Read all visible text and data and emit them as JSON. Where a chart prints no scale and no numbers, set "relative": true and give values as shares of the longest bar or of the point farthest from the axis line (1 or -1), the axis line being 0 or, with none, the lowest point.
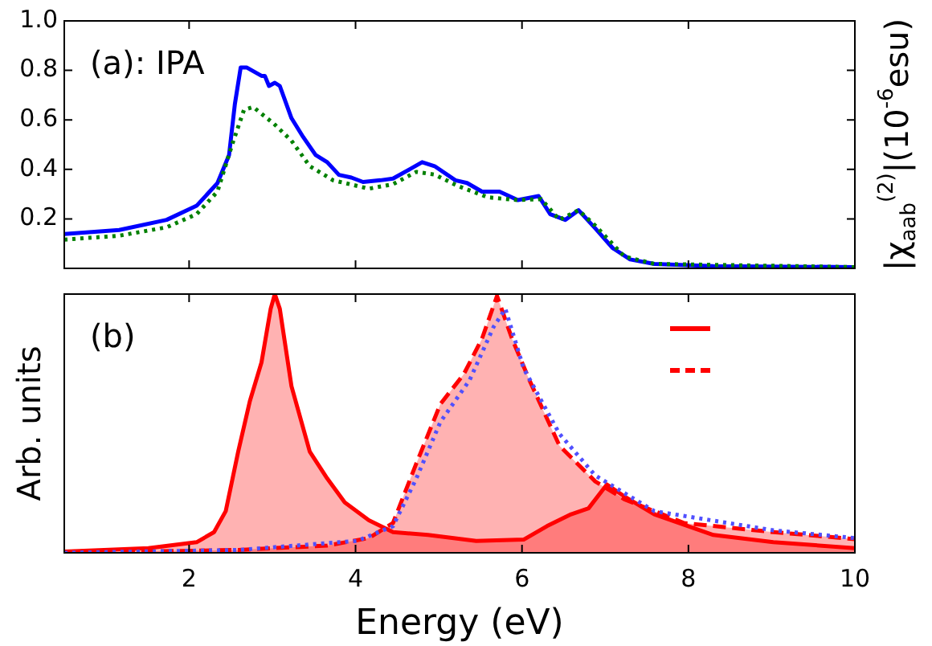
{
  "chart_data": [
    {
      "type": "line",
      "y2label": "|χ$_{aab}$$^{(2)}$|(10$^{-6}$esu)",
      "annotations": [
        "(a): IPA"
      ],
      "xlim": [
        0.5,
        10
      ],
      "xticks": [
        2,
        4,
        6,
        8,
        10
      ],
      "ylim": [
        0,
        1
      ],
      "yticks": [
        0.2,
        0.4,
        0.6,
        0.8,
        {
          "value": 1,
          "label": "1.0"
        }
      ],
      "tick_labels": "y",
      "legend": false,
      "grid": false,
      "series": [
        {
          "color": "#0000ff",
          "line_style": "solid",
          "x": [
            0.5,
            1.16,
            1.73,
            2.09,
            2.34,
            2.48,
            2.55,
            2.62,
            2.69,
            2.87,
            2.91,
            2.96,
            3.03,
            3.09,
            3.23,
            3.37,
            3.52,
            3.66,
            3.8,
            3.95,
            4.09,
            4.3,
            4.45,
            4.66,
            4.8,
            4.95,
            5.2,
            5.34,
            5.52,
            5.73,
            5.95,
            6.2,
            6.34,
            6.52,
            6.68,
            6.88,
            7.09,
            7.3,
            7.59,
            8.3,
            10
          ],
          "values": [
            0.139,
            0.155,
            0.196,
            0.253,
            0.344,
            0.458,
            0.664,
            0.812,
            0.812,
            0.778,
            0.778,
            0.737,
            0.75,
            0.737,
            0.607,
            0.531,
            0.458,
            0.429,
            0.378,
            0.367,
            0.349,
            0.356,
            0.363,
            0.402,
            0.429,
            0.413,
            0.356,
            0.345,
            0.31,
            0.31,
            0.276,
            0.292,
            0.219,
            0.196,
            0.235,
            0.162,
            0.082,
            0.036,
            0.018,
            0.009,
            0.005
          ]
        },
        {
          "color": "#008000",
          "line_style": "dotted",
          "x": [
            0.5,
            1.16,
            1.73,
            2.09,
            2.34,
            2.52,
            2.66,
            2.77,
            3.02,
            3.23,
            3.45,
            3.73,
            4.16,
            4.45,
            4.73,
            4.95,
            5.23,
            5.59,
            5.95,
            6.23,
            6.45,
            6.68,
            6.88,
            7.23,
            7.59,
            10
          ],
          "values": [
            0.116,
            0.132,
            0.166,
            0.219,
            0.31,
            0.503,
            0.641,
            0.652,
            0.584,
            0.516,
            0.413,
            0.356,
            0.322,
            0.34,
            0.39,
            0.379,
            0.333,
            0.287,
            0.276,
            0.28,
            0.196,
            0.235,
            0.173,
            0.048,
            0.018,
            0.005
          ]
        }
      ]
    },
    {
      "type": "area",
      "relative": true,
      "ylabel": "Arb. units",
      "xlabel": "Energy (eV)",
      "annotations": [
        "(b)"
      ],
      "xlim": [
        0.5,
        10
      ],
      "xticks": [
        2,
        4,
        6,
        8,
        10
      ],
      "legend": false,
      "grid": false,
      "series": [
        {
          "color": "#ff0000",
          "line_style": "solid",
          "x": [
            0.5,
            1.51,
            2.09,
            2.3,
            2.44,
            2.59,
            2.73,
            2.87,
            2.98,
            3.03,
            3.09,
            3.23,
            3.45,
            3.66,
            3.87,
            4.16,
            4.45,
            4.87,
            5.45,
            6.02,
            6.3,
            6.59,
            6.8,
            7.02,
            7.23,
            7.59,
            8.3,
            9.02,
            10
          ],
          "values": [
            0.005,
            0.018,
            0.041,
            0.08,
            0.161,
            0.391,
            0.586,
            0.736,
            0.943,
            1,
            0.943,
            0.644,
            0.391,
            0.287,
            0.195,
            0.126,
            0.08,
            0.069,
            0.046,
            0.051,
            0.103,
            0.149,
            0.172,
            0.264,
            0.218,
            0.149,
            0.069,
            0.041,
            0.018
          ]
        },
        {
          "color": "#ff0000",
          "line_style": "dashed",
          "x": [
            0.5,
            2.59,
            3.66,
            4.16,
            4.45,
            4.73,
            5.02,
            5.3,
            5.52,
            5.7,
            5.88,
            6.09,
            6.45,
            6.88,
            7.23,
            7.95,
            9.02,
            10
          ],
          "values": [
            0,
            0.011,
            0.028,
            0.057,
            0.115,
            0.345,
            0.575,
            0.69,
            0.828,
            0.993,
            0.828,
            0.667,
            0.414,
            0.276,
            0.207,
            0.115,
            0.08,
            0.053
          ]
        },
        {
          "type": "line",
          "color": "#5050ff",
          "line_style": "dotted",
          "x": [
            0.5,
            2.59,
            4.02,
            4.45,
            4.73,
            5.02,
            5.37,
            5.66,
            5.8,
            6.02,
            6.45,
            6.88,
            7.59,
            9.02,
            10
          ],
          "values": [
            0,
            0.011,
            0.046,
            0.103,
            0.287,
            0.506,
            0.667,
            0.874,
            0.943,
            0.713,
            0.46,
            0.299,
            0.161,
            0.087,
            0.057
          ]
        }
      ]
    }
  ]
}
